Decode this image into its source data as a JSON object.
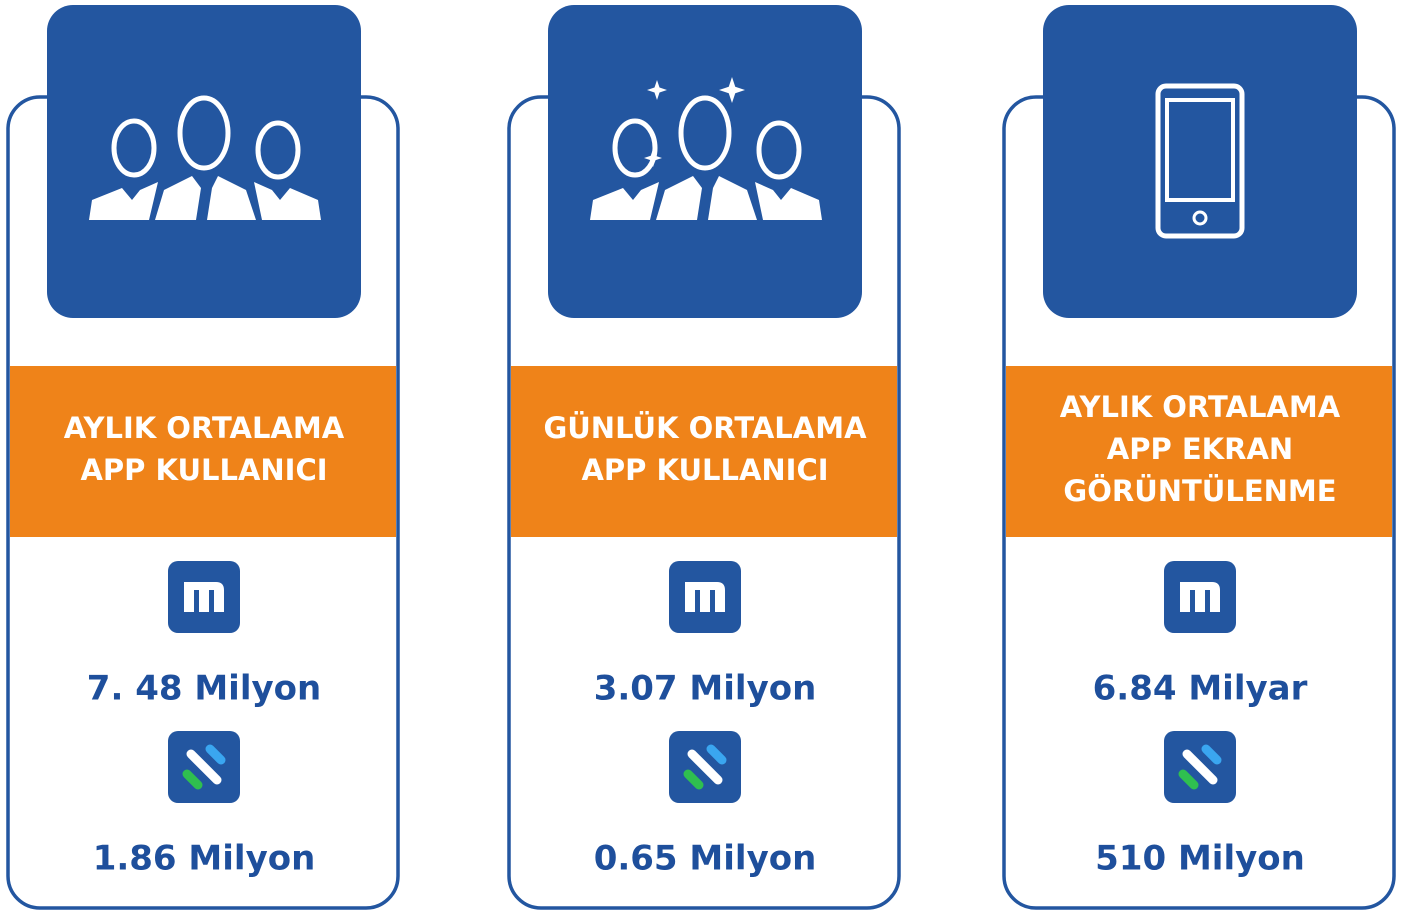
{
  "cards": [
    {
      "label": [
        "AYLIK ORTALAMA",
        "APP KULLANICI"
      ],
      "stats": [
        "7. 48 Milyon",
        "1.86 Milyon"
      ]
    },
    {
      "label": [
        "GÜNLÜK ORTALAMA",
        "APP KULLANICI"
      ],
      "stats": [
        "3.07 Milyon",
        "0.65 Milyon"
      ]
    },
    {
      "label": [
        "AYLIK ORTALAMA",
        "APP EKRAN",
        "GÖRÜNTÜLENME"
      ],
      "stats": [
        "6.84 Milyar",
        "510 Milyon"
      ]
    }
  ]
}
